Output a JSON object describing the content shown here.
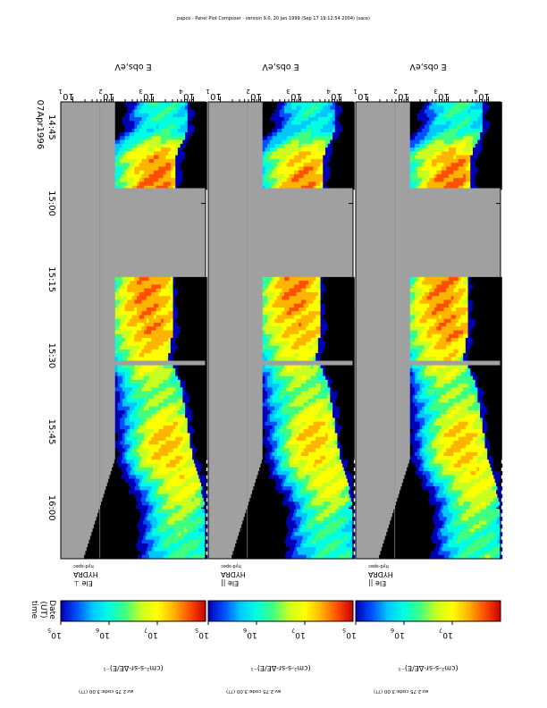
{
  "header": {
    "title": "papco - Panel Plot Composer - version 9.0, 20 Jan 1999 (Sep 17 19:12:54 2004) (sace)"
  },
  "time_axis": {
    "date_label": "07Apr1996",
    "first_tick": "14:45",
    "ticks": [
      "15:00",
      "15:15",
      "15:30",
      "15:45",
      "16:00"
    ],
    "corner_label_line1": "time",
    "corner_label_line2": "(UT)",
    "corner_label_line3": "Date"
  },
  "panels": [
    {
      "name": "HYDRA Ele perpendicular",
      "instrument": "HYDRA",
      "species_line": "Ele ⊥",
      "sub_label": "hyd-spec",
      "y_title": "E obs,eV",
      "y_ticks": [
        "10",
        "10",
        "10",
        "10"
      ],
      "y_tick_exponents": [
        "1",
        "2",
        "3",
        "4"
      ],
      "cb_ticks": [
        "10",
        "10",
        "10"
      ],
      "cb_tick_exponents": [
        "5",
        "6",
        "7"
      ],
      "cb_title": "(cm²-s-sr-ΔE/E)⁻¹",
      "footer": "av:2.75 code:3.00 (??)"
    },
    {
      "name": "HYDRA Ele parallel-a",
      "instrument": "HYDRA",
      "species_line": "Ele ||",
      "sub_label": "hyd-spec",
      "y_title": "E obs,eV",
      "y_ticks": [
        "10",
        "10",
        "10",
        "10"
      ],
      "y_tick_exponents": [
        "1",
        "2",
        "3",
        "4"
      ],
      "cb_ticks": [
        "10",
        "10",
        "10"
      ],
      "cb_tick_exponents": [
        "5",
        "6",
        "7"
      ],
      "cb_title": "(cm²-s-sr-ΔE/E)⁻¹",
      "footer": "av:2.75 code:3.00 (??)"
    },
    {
      "name": "HYDRA Ele parallel-b",
      "instrument": "HYDRA",
      "species_line": "Ele ||",
      "sub_label": "hyd-spec",
      "y_title": "E obs,eV",
      "y_ticks": [
        "10",
        "10",
        "10",
        "10"
      ],
      "y_tick_exponents": [
        "1",
        "2",
        "3",
        "4"
      ],
      "cb_ticks": [
        "10",
        "10",
        "10"
      ],
      "cb_tick_exponents": [
        "5",
        "6",
        "7"
      ],
      "cb_title": "(cm²-s-sr-ΔE/E)⁻¹",
      "footer": "av:2.75 code:3.00 (??)"
    }
  ],
  "colors": {
    "nodata": "#a0a0a0",
    "scale": [
      "#0000b4",
      "#0050ff",
      "#00c8ff",
      "#00ffe0",
      "#40ff80",
      "#c8ff20",
      "#ffff00",
      "#ffb400",
      "#ff5000",
      "#c80000"
    ]
  },
  "chart_data": {
    "type": "heatmap",
    "title": "",
    "x_axis": "time (UT), 07Apr1996, 14:40 to 16:10",
    "y_axis": "E obs,eV, log scale, 10^0.7 to 10^4.3",
    "color_axis": "(cm²-s-sr-ΔE/E)⁻¹, log scale 10^5 to 10^8",
    "data_gap": [
      "14:57",
      "15:14"
    ],
    "series": [
      {
        "name": "Ele ⊥",
        "times": [
          "14:45",
          "14:50",
          "14:55",
          "15:15",
          "15:20",
          "15:25",
          "15:30",
          "15:35",
          "15:40",
          "15:45",
          "15:50",
          "15:55",
          "16:00",
          "16:05"
        ],
        "peak_energy_log10": [
          3.3,
          3.0,
          3.0,
          2.9,
          2.9,
          2.9,
          2.8,
          3.1,
          3.2,
          3.3,
          3.4,
          3.6,
          3.7,
          3.7
        ],
        "peak_flux_log10": [
          6.2,
          7.3,
          7.4,
          7.3,
          7.4,
          7.4,
          6.9,
          6.6,
          6.7,
          7.1,
          7.2,
          6.9,
          6.5,
          6.4
        ]
      },
      {
        "name": "Ele || (middle)",
        "times": [
          "14:45",
          "14:50",
          "14:55",
          "15:15",
          "15:20",
          "15:25",
          "15:30",
          "15:35",
          "15:40",
          "15:45",
          "15:50",
          "15:55",
          "16:00",
          "16:05"
        ],
        "peak_energy_log10": [
          3.3,
          3.0,
          3.0,
          2.9,
          2.9,
          2.9,
          2.8,
          3.1,
          3.2,
          3.3,
          3.4,
          3.6,
          3.7,
          3.7
        ],
        "peak_flux_log10": [
          6.1,
          7.2,
          7.3,
          7.3,
          7.4,
          7.3,
          6.8,
          6.6,
          6.8,
          7.1,
          7.1,
          6.9,
          6.4,
          6.3
        ]
      },
      {
        "name": "Ele || (right)",
        "times": [
          "14:45",
          "14:50",
          "14:55",
          "15:15",
          "15:20",
          "15:25",
          "15:30",
          "15:35",
          "15:40",
          "15:45",
          "15:50",
          "15:55",
          "16:00",
          "16:05"
        ],
        "peak_energy_log10": [
          3.3,
          3.0,
          3.0,
          2.9,
          2.9,
          2.9,
          2.8,
          3.1,
          3.2,
          3.3,
          3.4,
          3.6,
          3.7,
          3.7
        ],
        "peak_flux_log10": [
          6.2,
          7.3,
          7.4,
          7.3,
          7.4,
          7.4,
          6.9,
          6.6,
          6.7,
          7.1,
          7.2,
          6.9,
          6.5,
          6.4
        ]
      }
    ]
  }
}
